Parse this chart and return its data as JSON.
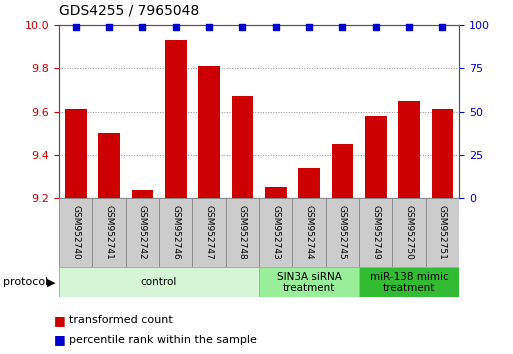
{
  "title": "GDS4255 / 7965048",
  "samples": [
    "GSM952740",
    "GSM952741",
    "GSM952742",
    "GSM952746",
    "GSM952747",
    "GSM952748",
    "GSM952743",
    "GSM952744",
    "GSM952745",
    "GSM952749",
    "GSM952750",
    "GSM952751"
  ],
  "bar_values": [
    9.61,
    9.5,
    9.24,
    9.93,
    9.81,
    9.67,
    9.25,
    9.34,
    9.45,
    9.58,
    9.65,
    9.61
  ],
  "percentile_values": [
    99,
    99,
    99,
    99,
    99,
    99,
    99,
    99,
    99,
    99,
    99,
    99
  ],
  "bar_color": "#cc0000",
  "percentile_color": "#0000cc",
  "ylim_left": [
    9.2,
    10.0
  ],
  "ylim_right": [
    0,
    100
  ],
  "yticks_left": [
    9.2,
    9.4,
    9.6,
    9.8,
    10.0
  ],
  "yticks_right": [
    0,
    25,
    50,
    75,
    100
  ],
  "groups": [
    {
      "label": "control",
      "start": 0,
      "end": 6,
      "color": "#d6f5d6",
      "border": "#aaaaaa"
    },
    {
      "label": "SIN3A siRNA\ntreatment",
      "start": 6,
      "end": 9,
      "color": "#99ee99",
      "border": "#aaaaaa"
    },
    {
      "label": "miR-138 mimic\ntreatment",
      "start": 9,
      "end": 12,
      "color": "#33bb33",
      "border": "#aaaaaa"
    }
  ],
  "legend_items": [
    {
      "label": "transformed count",
      "color": "#cc0000"
    },
    {
      "label": "percentile rank within the sample",
      "color": "#0000cc"
    }
  ],
  "background_color": "#ffffff",
  "grid_color": "#888888",
  "bar_bottom": 9.2,
  "sample_box_color": "#cccccc",
  "sample_box_edge": "#888888",
  "title_fontsize": 10,
  "tick_fontsize": 8,
  "sample_fontsize": 6.5
}
